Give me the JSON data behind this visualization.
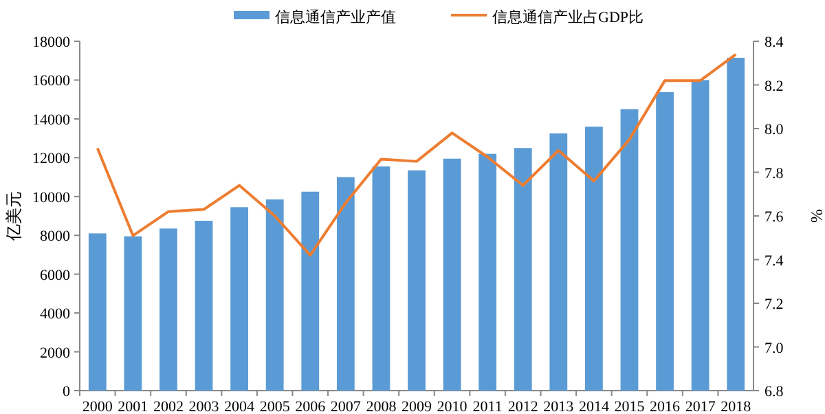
{
  "chart_data": {
    "type": "bar",
    "categories": [
      "2000",
      "2001",
      "2002",
      "2003",
      "2004",
      "2005",
      "2006",
      "2007",
      "2008",
      "2009",
      "2010",
      "2011",
      "2012",
      "2013",
      "2014",
      "2015",
      "2016",
      "2017",
      "2018"
    ],
    "series": [
      {
        "name": "信息通信产业产值",
        "color": "#5b9bd5",
        "values": [
          8100,
          7950,
          8350,
          8750,
          9450,
          9850,
          10250,
          11000,
          11550,
          11350,
          11950,
          12200,
          12500,
          13250,
          13600,
          14500,
          15380,
          16000,
          17150
        ]
      },
      {
        "name": "信息通信产业占GDP比",
        "type": "line",
        "axis": "y2",
        "color": "#ed7d31",
        "values": [
          7.91,
          7.51,
          7.62,
          7.63,
          7.74,
          7.6,
          7.42,
          7.66,
          7.86,
          7.85,
          7.98,
          7.87,
          7.74,
          7.9,
          7.76,
          7.95,
          8.22,
          8.22,
          8.34
        ]
      }
    ],
    "ylabel": "亿美元",
    "y2label": "%",
    "ylim": [
      0,
      18000
    ],
    "yticks": [
      0,
      2000,
      4000,
      6000,
      8000,
      10000,
      12000,
      14000,
      16000,
      18000
    ],
    "y2lim": [
      6.8,
      8.4
    ],
    "y2ticks": [
      {
        "value": 6.8,
        "label": "6.8"
      },
      {
        "value": 7.0,
        "label": "7.0"
      },
      {
        "value": 7.2,
        "label": "7.2"
      },
      {
        "value": 7.4,
        "label": "7.4"
      },
      {
        "value": 7.6,
        "label": "7.6"
      },
      {
        "value": 7.8,
        "label": "7.8"
      },
      {
        "value": 8.0,
        "label": "8.0"
      },
      {
        "value": 8.2,
        "label": "8.2"
      },
      {
        "value": 8.4,
        "label": "8.4"
      }
    ],
    "legend": "top",
    "grid": false
  }
}
